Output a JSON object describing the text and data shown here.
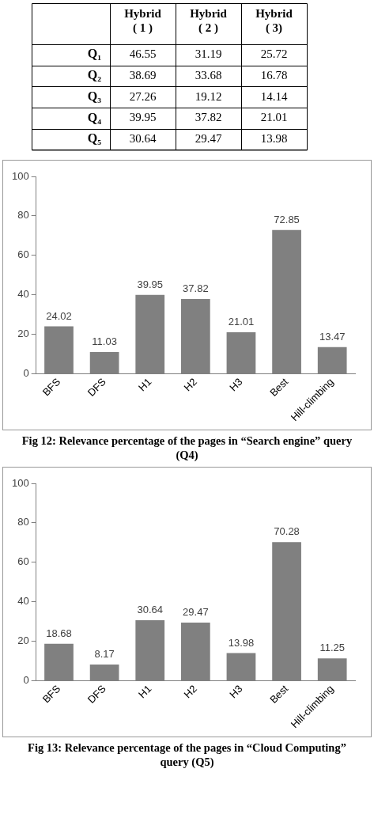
{
  "chart_data": [
    {
      "type": "heatmap",
      "categories": [
        "Hybrid ( 1 )",
        "Hybrid ( 2 )",
        "Hybrid ( 3)"
      ],
      "y_categories": [
        "Q₁",
        "Q₂",
        "Q₃",
        "Q₄",
        "Q₅"
      ],
      "cells": [
        [
          46.55,
          31.19,
          25.72
        ],
        [
          38.69,
          33.68,
          16.78
        ],
        [
          27.26,
          19.12,
          14.14
        ],
        [
          39.95,
          37.82,
          21.01
        ],
        [
          30.64,
          29.47,
          13.98
        ]
      ],
      "data_labels": true
    },
    {
      "type": "bar",
      "title": "Fig 12: Relevance percentage of the pages in “Search engine” query (Q4)",
      "categories": [
        "BFS",
        "DFS",
        "H1",
        "H2",
        "H3",
        "Best",
        "Hill-climbing"
      ],
      "values": [
        24.02,
        11.03,
        39.95,
        37.82,
        21.01,
        72.85,
        13.47
      ],
      "color": "#808080",
      "ylim": [
        0,
        100
      ],
      "yticks": [
        0,
        20,
        40,
        60,
        80,
        100
      ],
      "data_labels": true
    },
    {
      "type": "bar",
      "title": "Fig 13: Relevance percentage of the pages in “Cloud Computing” query (Q5)",
      "categories": [
        "BFS",
        "DFS",
        "H1",
        "H2",
        "H3",
        "Best",
        "Hill-climbing"
      ],
      "values": [
        18.68,
        8.17,
        30.64,
        29.47,
        13.98,
        70.28,
        11.25
      ],
      "color": "#808080",
      "ylim": [
        0,
        100
      ],
      "yticks": [
        0,
        20,
        40,
        60,
        80,
        100
      ],
      "data_labels": true
    }
  ]
}
